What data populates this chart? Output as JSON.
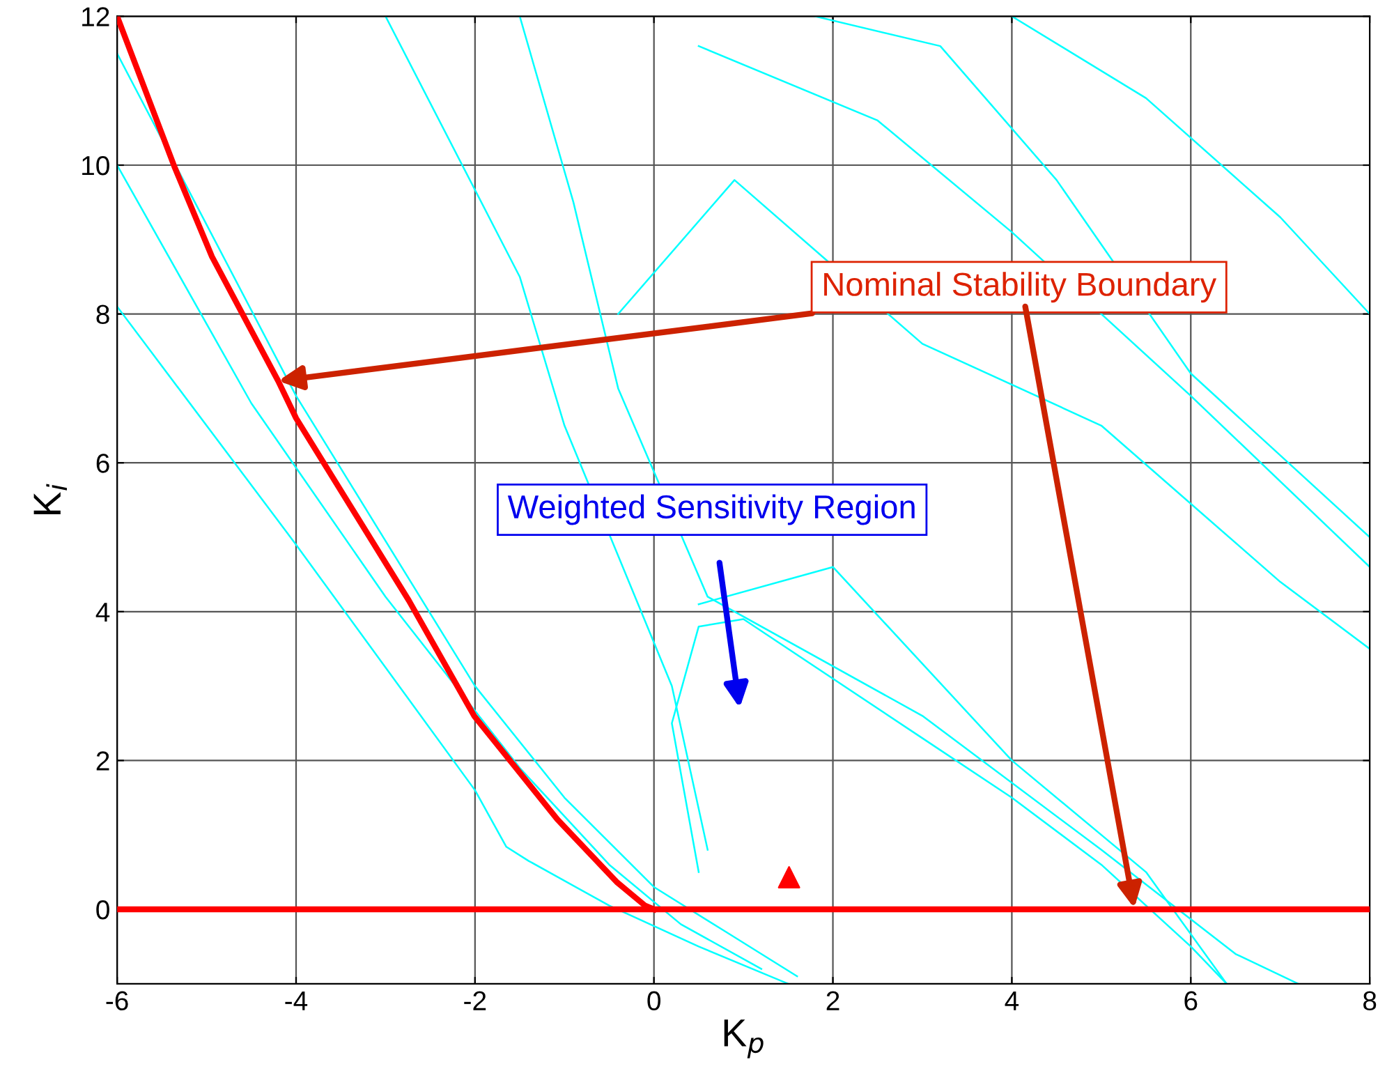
{
  "chart_data": {
    "type": "line",
    "xlabel": "K$_{p}$",
    "ylabel": "K$_{i}$",
    "xlim": [
      -6,
      8
    ],
    "ylim": [
      -1,
      12
    ],
    "xticks": [
      -6,
      -4,
      -2,
      0,
      2,
      4,
      6,
      8
    ],
    "yticks": [
      0,
      2,
      4,
      6,
      8,
      10,
      12
    ],
    "grid": true,
    "series": [
      {
        "color": "#00ffff",
        "x": [
          -6,
          -4,
          -2,
          -1.65,
          -1.4,
          -0.5,
          0.5,
          1.5
        ],
        "values": [
          8.1,
          4.9,
          1.6,
          0.84,
          0.65,
          0.05,
          -0.5,
          -1
        ]
      },
      {
        "color": "#00ffff",
        "x": [
          -6,
          -4,
          -2,
          -1,
          0,
          0.8,
          1.6
        ],
        "values": [
          11.5,
          6.9,
          3,
          1.5,
          0.3,
          -0.3,
          -0.9
        ]
      },
      {
        "color": "#00ffff",
        "x": [
          -6,
          -4.5,
          -3,
          -1.5,
          -0.5,
          0.3,
          1.2
        ],
        "values": [
          10,
          6.8,
          4.2,
          1.9,
          0.6,
          -0.2,
          -0.8
        ]
      },
      {
        "color": "#00ffff",
        "x": [
          0.5,
          0.2,
          0.5,
          1,
          3,
          4,
          5,
          6,
          6.4
        ],
        "values": [
          0.5,
          2.5,
          3.8,
          3.9,
          2.3,
          1.5,
          0.6,
          -0.5,
          -1
        ]
      },
      {
        "color": "#00ffff",
        "x": [
          -3,
          -1.5,
          -1,
          0.2,
          0.6
        ],
        "values": [
          12,
          8.5,
          6.5,
          3,
          0.8
        ]
      },
      {
        "color": "#00ffff",
        "x": [
          -1.5,
          -0.9,
          -0.4,
          0.6,
          3,
          5,
          6.5,
          7.2
        ],
        "values": [
          12,
          9.5,
          7,
          4.2,
          2.6,
          0.8,
          -0.6,
          -1
        ]
      },
      {
        "color": "#00ffff",
        "x": [
          -0.4,
          0.9,
          3,
          5,
          7,
          8
        ],
        "values": [
          8,
          9.8,
          7.6,
          6.5,
          4.4,
          3.5
        ]
      },
      {
        "color": "#00ffff",
        "x": [
          0.5,
          2.5,
          4,
          6,
          8
        ],
        "values": [
          11.6,
          10.6,
          9.1,
          6.9,
          4.6
        ]
      },
      {
        "color": "#00ffff",
        "x": [
          1.8,
          3.2,
          4.5,
          6,
          8
        ],
        "values": [
          12,
          11.6,
          9.8,
          7.2,
          5
        ]
      },
      {
        "color": "#00ffff",
        "x": [
          4,
          5.5,
          7,
          8
        ],
        "values": [
          12,
          10.9,
          9.3,
          8
        ]
      },
      {
        "color": "#00ffff",
        "x": [
          0.5,
          2,
          4,
          5.5,
          6.4
        ],
        "values": [
          4.1,
          4.6,
          2,
          0.5,
          -1
        ]
      },
      {
        "color": "#ff0000",
        "x": [
          -6,
          -5.36,
          -4.94,
          -4.2,
          -4,
          -2.74,
          -2.01,
          -1.08,
          -0.41,
          -0.1,
          0
        ],
        "values": [
          12,
          9.98,
          8.77,
          7.1,
          6.6,
          4.15,
          2.6,
          1.21,
          0.36,
          0.05,
          0
        ]
      },
      {
        "type": "scatter",
        "marker": "triangle",
        "color": "#ff0000",
        "x": [
          1.51
        ],
        "values": [
          0.43
        ]
      }
    ],
    "ref_lines": [
      {
        "axis": "y",
        "value": 0,
        "color": "#ff0000"
      }
    ],
    "annotations": [
      {
        "text": "Nominal Stability Boundary",
        "x": -4.2,
        "y": 7.1
      },
      "Weighted Sensitivity Region"
    ]
  }
}
